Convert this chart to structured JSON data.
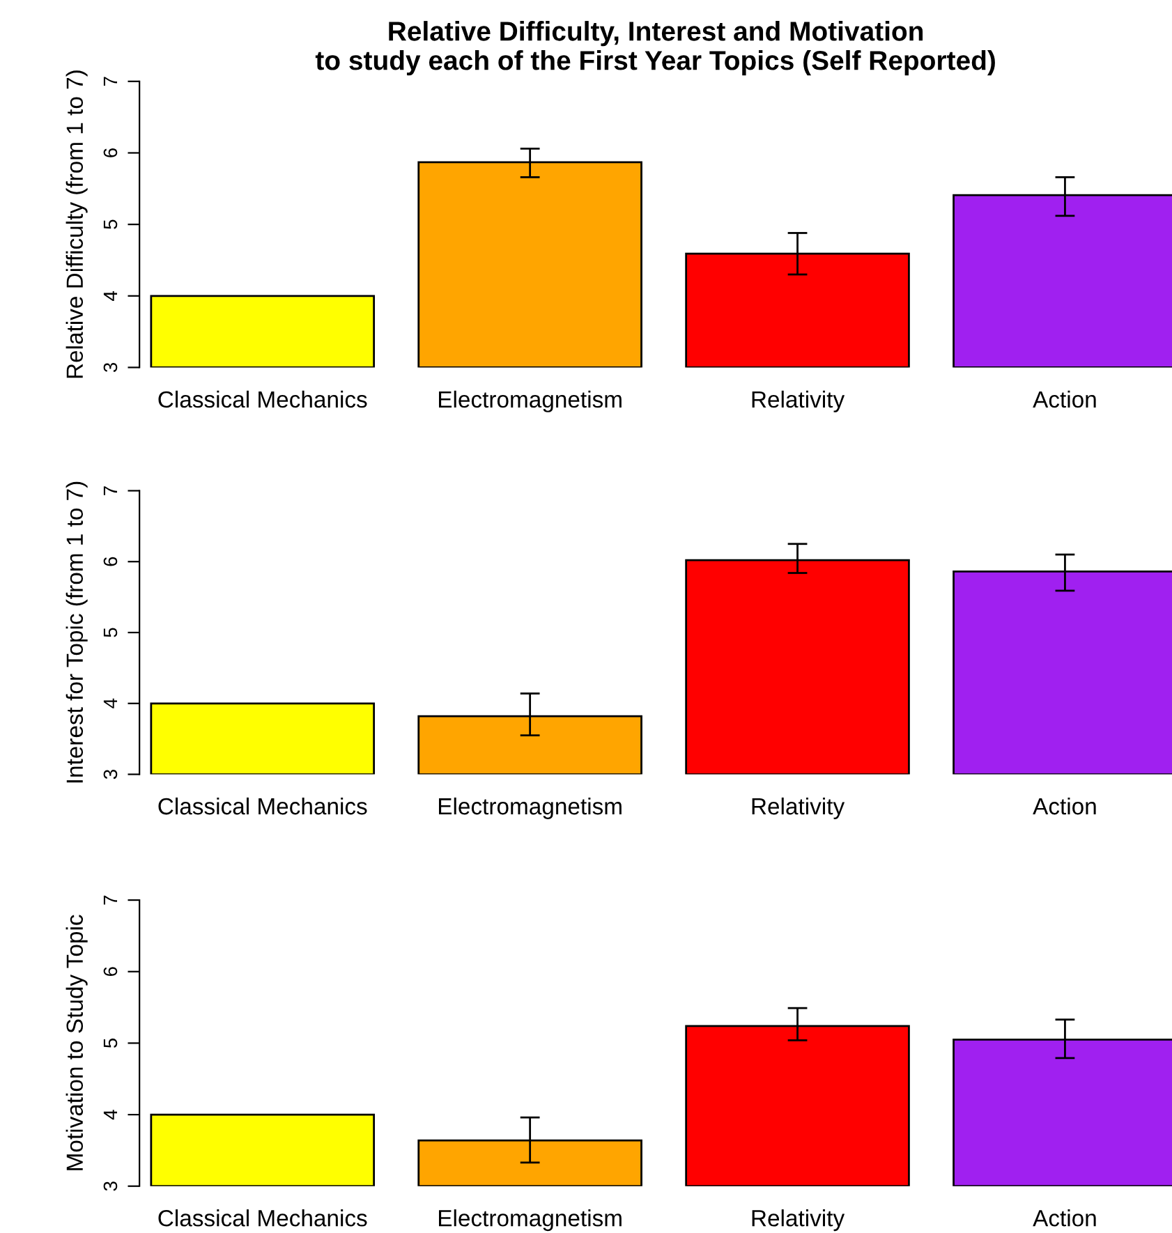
{
  "chart_data": [
    {
      "type": "bar",
      "title": "Relative Difficulty, Interest and Motivation\nto study each of the First Year Topics (Self Reported)",
      "ylabel": "Relative Difficulty (from 1 to 7)",
      "categories": [
        "Classical Mechanics",
        "Electromagnetism",
        "Relativity",
        "Action"
      ],
      "values": [
        4,
        5.87,
        4.59,
        5.41
      ],
      "errors": [
        null,
        [
          5.66,
          6.06
        ],
        [
          4.3,
          4.88
        ],
        [
          5.12,
          5.66
        ]
      ],
      "colors": [
        "#ffff00",
        "#ffa500",
        "#ff0000",
        "#a020f0"
      ],
      "ylim": [
        3,
        7
      ],
      "yticks": [
        3,
        4,
        5,
        6,
        7
      ],
      "grid": false,
      "legend": false
    },
    {
      "type": "bar",
      "ylabel": "Interest for Topic (from 1 to 7)",
      "categories": [
        "Classical Mechanics",
        "Electromagnetism",
        "Relativity",
        "Action"
      ],
      "values": [
        4,
        3.82,
        6.02,
        5.86
      ],
      "errors": [
        null,
        [
          3.55,
          4.14
        ],
        [
          5.84,
          6.25
        ],
        [
          5.59,
          6.1
        ]
      ],
      "colors": [
        "#ffff00",
        "#ffa500",
        "#ff0000",
        "#a020f0"
      ],
      "ylim": [
        3,
        7
      ],
      "yticks": [
        3,
        4,
        5,
        6,
        7
      ],
      "grid": false,
      "legend": false
    },
    {
      "type": "bar",
      "ylabel": "Motivation to Study Topic",
      "categories": [
        "Classical Mechanics",
        "Electromagnetism",
        "Relativity",
        "Action"
      ],
      "values": [
        4,
        3.64,
        5.24,
        5.05
      ],
      "errors": [
        null,
        [
          3.33,
          3.96
        ],
        [
          5.04,
          5.49
        ],
        [
          4.79,
          5.33
        ]
      ],
      "colors": [
        "#ffff00",
        "#ffa500",
        "#ff0000",
        "#a020f0"
      ],
      "ylim": [
        3,
        7
      ],
      "yticks": [
        3,
        4,
        5,
        6,
        7
      ],
      "grid": false,
      "legend": false
    }
  ]
}
